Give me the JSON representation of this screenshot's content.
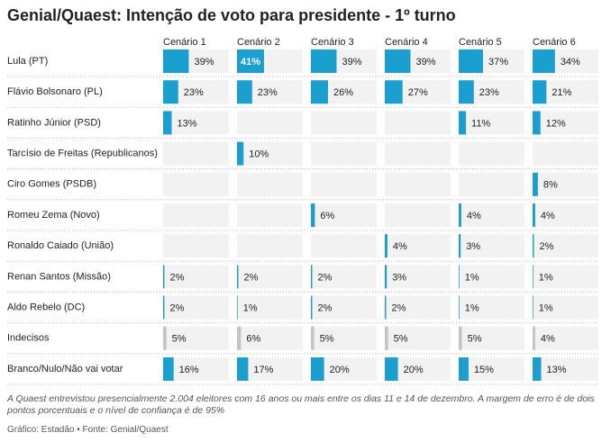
{
  "chart_data": {
    "type": "bar-table",
    "title": "Genial/Quaest: Intenção de voto para presidente - 1º turno",
    "categories": [
      "Lula (PT)",
      "Flávio Bolsonaro (PL)",
      "Ratinho Júnior (PSD)",
      "Tarcísio de Freitas (Republicanos)",
      "Ciro Gomes (PSDB)",
      "Romeu Zema (Novo)",
      "Ronaldo Caiado (União)",
      "Renan Santos (Missão)",
      "Aldo Rebelo (DC)",
      "Indecisos",
      "Branco/Nulo/Não vai votar"
    ],
    "category_colors": [
      "#1a9fd0",
      "#1a9fd0",
      "#1a9fd0",
      "#1a9fd0",
      "#1a9fd0",
      "#1a9fd0",
      "#1a9fd0",
      "#1a9fd0",
      "#1a9fd0",
      "#c4c4c4",
      "#1a9fd0"
    ],
    "series": [
      {
        "name": "Cenário 1",
        "values": [
          39,
          23,
          13,
          null,
          null,
          null,
          null,
          2,
          2,
          5,
          16
        ],
        "value_labels": [
          "39%",
          "23%",
          "13%",
          null,
          null,
          null,
          null,
          "2%",
          "2%",
          "5%",
          "16%"
        ]
      },
      {
        "name": "Cenário 2",
        "values": [
          41,
          23,
          null,
          10,
          null,
          null,
          null,
          2,
          1,
          6,
          17
        ],
        "value_labels": [
          "41%",
          "23%",
          null,
          "10%",
          null,
          null,
          null,
          "2%",
          "1%",
          "6%",
          "17%"
        ]
      },
      {
        "name": "Cenário 3",
        "values": [
          39,
          26,
          null,
          null,
          null,
          6,
          null,
          2,
          2,
          5,
          20
        ],
        "value_labels": [
          "39%",
          "26%",
          null,
          null,
          null,
          "6%",
          null,
          "2%",
          "2%",
          "5%",
          "20%"
        ]
      },
      {
        "name": "Cenário 4",
        "values": [
          39,
          27,
          null,
          null,
          null,
          null,
          4,
          3,
          2,
          5,
          20
        ],
        "value_labels": [
          "39%",
          "27%",
          null,
          null,
          null,
          null,
          "4%",
          "3%",
          "2%",
          "5%",
          "20%"
        ]
      },
      {
        "name": "Cenário 5",
        "values": [
          37,
          23,
          11,
          null,
          null,
          4,
          3,
          1,
          1,
          5,
          15
        ],
        "value_labels": [
          "37%",
          "23%",
          "11%",
          null,
          null,
          "4%",
          "3%",
          "1%",
          "1%",
          "5%",
          "15%"
        ]
      },
      {
        "name": "Cenário 6",
        "values": [
          34,
          21,
          12,
          null,
          8,
          4,
          2,
          1,
          1,
          4,
          13
        ],
        "value_labels": [
          "34%",
          "21%",
          "12%",
          null,
          "8%",
          "4%",
          "2%",
          "1%",
          "1%",
          "4%",
          "13%"
        ]
      }
    ],
    "highlighted": [
      [
        1,
        0
      ]
    ],
    "xlim": [
      0,
      100
    ],
    "note": "A Quaest entrevistou presencialmente 2.004 eleitores com 16 anos ou mais entre os dias 11 e 14 de dezembro. A margem de erro é de dois pontos porcentuais e o nível de confiança é de 95%",
    "source": "Gráfico: Estadão • Fonte: Genial/Quaest"
  }
}
